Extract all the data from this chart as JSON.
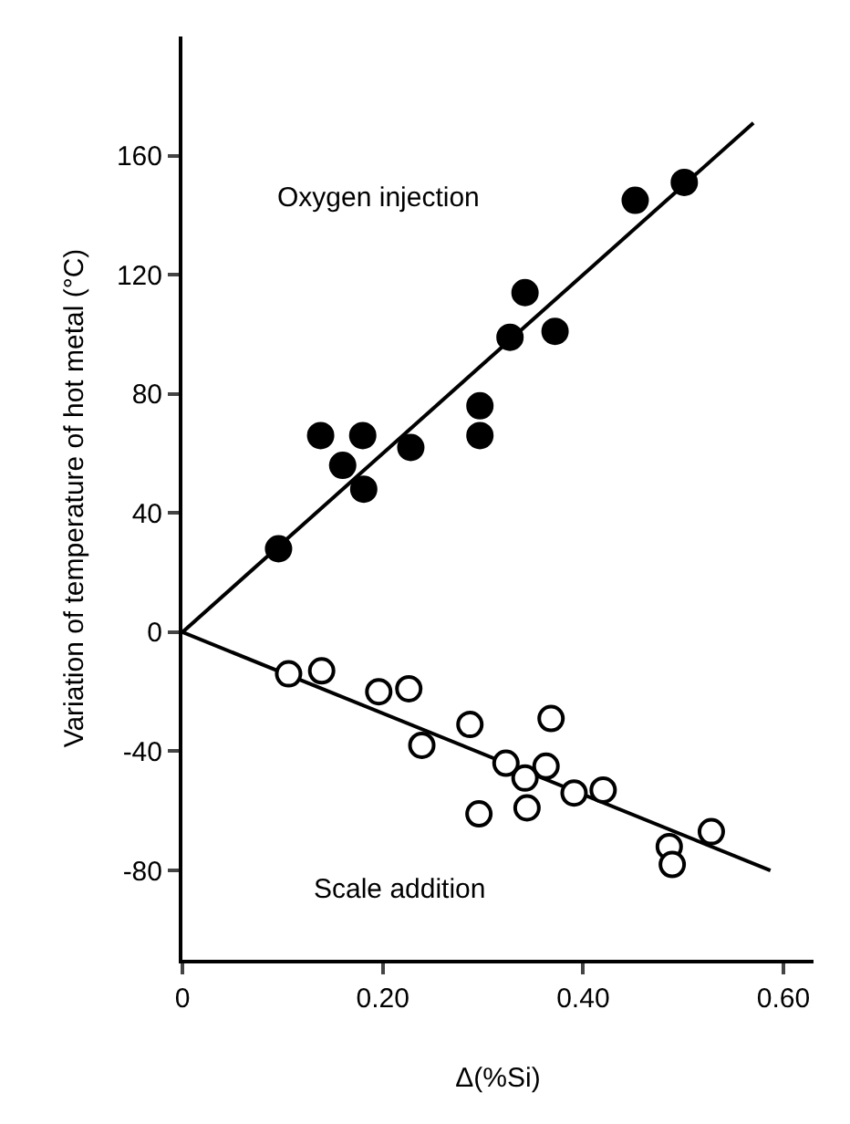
{
  "chart_data": {
    "type": "scatter",
    "xlabel": "Δ(%Si)",
    "ylabel": "Variation of temperature of hot metal (°C)",
    "xlim": [
      0,
      0.63
    ],
    "ylim": [
      -110,
      200
    ],
    "xticks": [
      0,
      {
        "value": 0.2,
        "label": "0.20"
      },
      {
        "value": 0.4,
        "label": "0.40"
      },
      {
        "value": 0.6,
        "label": "0.60"
      }
    ],
    "yticks": [
      -80,
      -40,
      0,
      40,
      80,
      120,
      160
    ],
    "grid": false,
    "marker": "circle",
    "annotations": [
      "Oxygen injection",
      "Scale addition"
    ],
    "series": [
      {
        "color": "#000000",
        "x": [
          0.096,
          0.138,
          0.18,
          0.16,
          0.181,
          0.228,
          0.297,
          0.297,
          0.327,
          0.342,
          0.372,
          0.452,
          0.501
        ],
        "values": [
          28,
          66,
          66,
          56,
          48,
          62,
          76,
          66,
          99,
          114,
          101,
          145,
          151
        ]
      },
      {
        "color": "#ffffff",
        "x": [
          0.106,
          0.139,
          0.196,
          0.226,
          0.239,
          0.287,
          0.296,
          0.323,
          0.342,
          0.344,
          0.363,
          0.368,
          0.391,
          0.42,
          0.486,
          0.489,
          0.528
        ],
        "values": [
          -14,
          -13,
          -20,
          -19,
          -38,
          -31,
          -61,
          -44,
          -49,
          -59,
          -45,
          -29,
          -54,
          -53,
          -72,
          -78,
          -67
        ]
      },
      {
        "type": "line",
        "color": "#000000",
        "marker": "none",
        "x": [
          0,
          0.57
        ],
        "values": [
          0,
          171
        ]
      },
      {
        "type": "line",
        "color": "#000000",
        "marker": "none",
        "x": [
          0,
          0.587
        ],
        "values": [
          0,
          -80
        ]
      }
    ]
  }
}
